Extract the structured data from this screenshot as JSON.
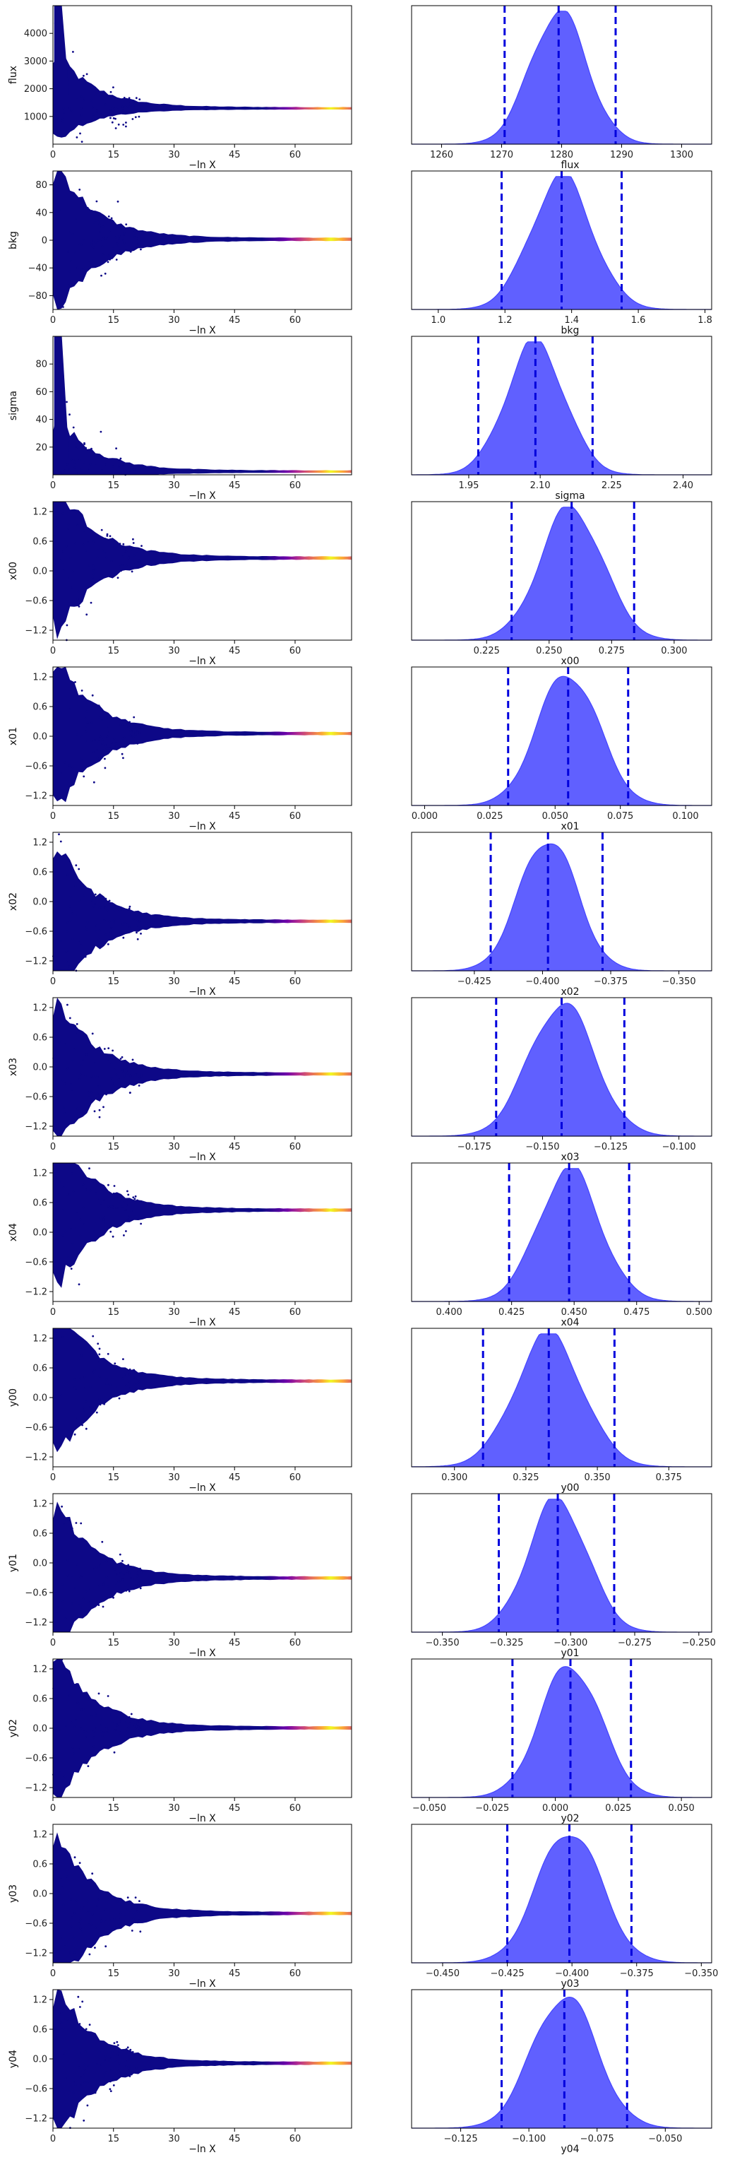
{
  "figure": {
    "trace_color_start": "#0d0887",
    "trace_color_end": "#f0f921",
    "posterior_fill": "#4444ff",
    "quantile_line": "#0000dd",
    "quantiles": [
      0.025,
      0.5,
      0.975
    ]
  },
  "chart_data": [
    {
      "type": "scatter",
      "param": "flux",
      "xlabel": "−ln X",
      "ylabel": "flux",
      "xlim": [
        0,
        74
      ],
      "ylim": [
        0,
        5000
      ],
      "xticks": [
        0,
        15,
        30,
        45,
        60
      ],
      "yticks": [
        1000,
        2000,
        3000,
        4000
      ],
      "converged_value": 1280,
      "hist": {
        "type": "area",
        "xlabel": "flux",
        "xlim": [
          1255,
          1305
        ],
        "xticks": [
          1260,
          1270,
          1280,
          1290,
          1300
        ],
        "median": 1279.5,
        "q_low": 1270.5,
        "q_high": 1289.0
      }
    },
    {
      "type": "scatter",
      "param": "bkg",
      "xlabel": "−ln X",
      "ylabel": "bkg",
      "xlim": [
        0,
        74
      ],
      "ylim": [
        -100,
        100
      ],
      "xticks": [
        0,
        15,
        30,
        45,
        60
      ],
      "yticks": [
        -80,
        -40,
        0,
        40,
        80
      ],
      "converged_value": 1.37,
      "hist": {
        "type": "area",
        "xlabel": "bkg",
        "xlim": [
          0.92,
          1.82
        ],
        "xticks": [
          1.0,
          1.2,
          1.4,
          1.6,
          1.8
        ],
        "median": 1.37,
        "q_low": 1.19,
        "q_high": 1.55
      }
    },
    {
      "type": "scatter",
      "param": "sigma",
      "xlabel": "−ln X",
      "ylabel": "sigma",
      "xlim": [
        0,
        74
      ],
      "ylim": [
        0,
        100
      ],
      "xticks": [
        0,
        15,
        30,
        45,
        60
      ],
      "yticks": [
        20,
        40,
        60,
        80
      ],
      "converged_value": 2.09,
      "hist": {
        "type": "area",
        "xlabel": "sigma",
        "xlim": [
          1.83,
          2.46
        ],
        "xticks": [
          1.95,
          2.1,
          2.25,
          2.4
        ],
        "median": 2.09,
        "q_low": 1.97,
        "q_high": 2.21
      }
    },
    {
      "type": "scatter",
      "param": "x00",
      "xlabel": "−ln X",
      "ylabel": "x00",
      "xlim": [
        0,
        74
      ],
      "ylim": [
        -1.4,
        1.4
      ],
      "xticks": [
        0,
        15,
        30,
        45,
        60
      ],
      "yticks": [
        -1.2,
        -0.6,
        0.0,
        0.6,
        1.2
      ],
      "converged_value": 0.26,
      "hist": {
        "type": "area",
        "xlabel": "x00",
        "xlim": [
          0.195,
          0.315
        ],
        "xticks": [
          0.225,
          0.25,
          0.275,
          0.3
        ],
        "median": 0.259,
        "q_low": 0.235,
        "q_high": 0.284
      }
    },
    {
      "type": "scatter",
      "param": "x01",
      "xlabel": "−ln X",
      "ylabel": "x01",
      "xlim": [
        0,
        74
      ],
      "ylim": [
        -1.4,
        1.4
      ],
      "xticks": [
        0,
        15,
        30,
        45,
        60
      ],
      "yticks": [
        -1.2,
        -0.6,
        0.0,
        0.6,
        1.2
      ],
      "converged_value": 0.055,
      "hist": {
        "type": "area",
        "xlabel": "x01",
        "xlim": [
          -0.005,
          0.11
        ],
        "xticks": [
          0.0,
          0.025,
          0.05,
          0.075,
          0.1
        ],
        "median": 0.055,
        "q_low": 0.032,
        "q_high": 0.078
      }
    },
    {
      "type": "scatter",
      "param": "x02",
      "xlabel": "−ln X",
      "ylabel": "x02",
      "xlim": [
        0,
        74
      ],
      "ylim": [
        -1.4,
        1.4
      ],
      "xticks": [
        0,
        15,
        30,
        45,
        60
      ],
      "yticks": [
        -1.2,
        -0.6,
        0.0,
        0.6,
        1.2
      ],
      "converged_value": -0.398,
      "hist": {
        "type": "area",
        "xlabel": "x02",
        "xlim": [
          -0.448,
          -0.338
        ],
        "xticks": [
          -0.425,
          -0.4,
          -0.375,
          -0.35
        ],
        "median": -0.398,
        "q_low": -0.419,
        "q_high": -0.378
      }
    },
    {
      "type": "scatter",
      "param": "x03",
      "xlabel": "−ln X",
      "ylabel": "x03",
      "xlim": [
        0,
        74
      ],
      "ylim": [
        -1.4,
        1.4
      ],
      "xticks": [
        0,
        15,
        30,
        45,
        60
      ],
      "yticks": [
        -1.2,
        -0.6,
        0.0,
        0.6,
        1.2
      ],
      "converged_value": -0.143,
      "hist": {
        "type": "area",
        "xlabel": "x03",
        "xlim": [
          -0.198,
          -0.088
        ],
        "xticks": [
          -0.175,
          -0.15,
          -0.125,
          -0.1
        ],
        "median": -0.143,
        "q_low": -0.167,
        "q_high": -0.12
      }
    },
    {
      "type": "scatter",
      "param": "x04",
      "xlabel": "−ln X",
      "ylabel": "x04",
      "xlim": [
        0,
        74
      ],
      "ylim": [
        -1.4,
        1.4
      ],
      "xticks": [
        0,
        15,
        30,
        45,
        60
      ],
      "yticks": [
        -1.2,
        -0.6,
        0.0,
        0.6,
        1.2
      ],
      "converged_value": 0.448,
      "hist": {
        "type": "area",
        "xlabel": "x04",
        "xlim": [
          0.385,
          0.505
        ],
        "xticks": [
          0.4,
          0.425,
          0.45,
          0.475,
          0.5
        ],
        "median": 0.448,
        "q_low": 0.424,
        "q_high": 0.472
      }
    },
    {
      "type": "scatter",
      "param": "y00",
      "xlabel": "−ln X",
      "ylabel": "y00",
      "xlim": [
        0,
        74
      ],
      "ylim": [
        -1.4,
        1.4
      ],
      "xticks": [
        0,
        15,
        30,
        45,
        60
      ],
      "yticks": [
        -1.2,
        -0.6,
        0.0,
        0.6,
        1.2
      ],
      "converged_value": 0.333,
      "hist": {
        "type": "area",
        "xlabel": "y00",
        "xlim": [
          0.285,
          0.39
        ],
        "xticks": [
          0.3,
          0.325,
          0.35,
          0.375
        ],
        "median": 0.333,
        "q_low": 0.31,
        "q_high": 0.356
      }
    },
    {
      "type": "scatter",
      "param": "y01",
      "xlabel": "−ln X",
      "ylabel": "y01",
      "xlim": [
        0,
        74
      ],
      "ylim": [
        -1.4,
        1.4
      ],
      "xticks": [
        0,
        15,
        30,
        45,
        60
      ],
      "yticks": [
        -1.2,
        -0.6,
        0.0,
        0.6,
        1.2
      ],
      "converged_value": -0.305,
      "hist": {
        "type": "area",
        "xlabel": "y01",
        "xlim": [
          -0.362,
          -0.245
        ],
        "xticks": [
          -0.35,
          -0.325,
          -0.3,
          -0.275,
          -0.25
        ],
        "median": -0.305,
        "q_low": -0.328,
        "q_high": -0.283
      }
    },
    {
      "type": "scatter",
      "param": "y02",
      "xlabel": "−ln X",
      "ylabel": "y02",
      "xlim": [
        0,
        74
      ],
      "ylim": [
        -1.4,
        1.4
      ],
      "xticks": [
        0,
        15,
        30,
        45,
        60
      ],
      "yticks": [
        -1.2,
        -0.6,
        0.0,
        0.6,
        1.2
      ],
      "converged_value": 0.006,
      "hist": {
        "type": "area",
        "xlabel": "y02",
        "xlim": [
          -0.057,
          0.062
        ],
        "xticks": [
          -0.05,
          -0.025,
          0.0,
          0.025,
          0.05
        ],
        "median": 0.006,
        "q_low": -0.017,
        "q_high": 0.03
      }
    },
    {
      "type": "scatter",
      "param": "y03",
      "xlabel": "−ln X",
      "ylabel": "y03",
      "xlim": [
        0,
        74
      ],
      "ylim": [
        -1.4,
        1.4
      ],
      "xticks": [
        0,
        15,
        30,
        45,
        60
      ],
      "yticks": [
        -1.2,
        -0.6,
        0.0,
        0.6,
        1.2
      ],
      "converged_value": -0.401,
      "hist": {
        "type": "area",
        "xlabel": "y03",
        "xlim": [
          -0.462,
          -0.346
        ],
        "xticks": [
          -0.45,
          -0.425,
          -0.4,
          -0.375,
          -0.35
        ],
        "median": -0.401,
        "q_low": -0.425,
        "q_high": -0.377
      }
    },
    {
      "type": "scatter",
      "param": "y04",
      "xlabel": "−ln X",
      "ylabel": "y04",
      "xlim": [
        0,
        74
      ],
      "ylim": [
        -1.4,
        1.4
      ],
      "xticks": [
        0,
        15,
        30,
        45,
        60
      ],
      "yticks": [
        -1.2,
        -0.6,
        0.0,
        0.6,
        1.2
      ],
      "converged_value": -0.087,
      "hist": {
        "type": "area",
        "xlabel": "y04",
        "xlim": [
          -0.143,
          -0.033
        ],
        "xticks": [
          -0.125,
          -0.1,
          -0.075,
          -0.05
        ],
        "median": -0.087,
        "q_low": -0.11,
        "q_high": -0.064
      }
    }
  ]
}
